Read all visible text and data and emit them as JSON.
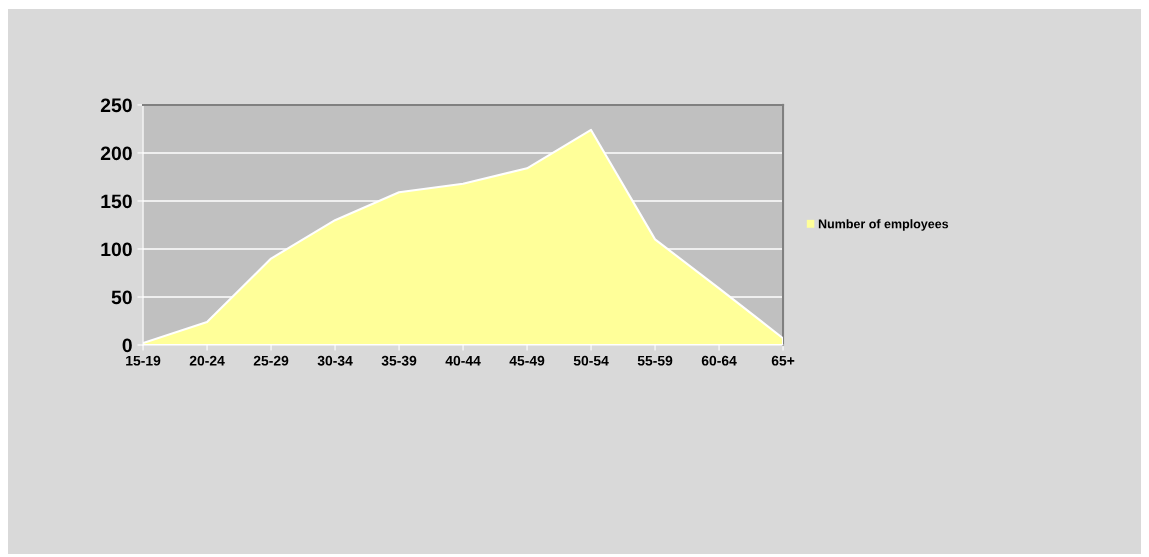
{
  "chart_data": {
    "type": "area",
    "categories": [
      "15-19",
      "20-24",
      "25-29",
      "30-34",
      "35-39",
      "40-44",
      "45-49",
      "50-54",
      "55-59",
      "60-64",
      "65+"
    ],
    "series": [
      {
        "name": "Number of employees",
        "color": "#ffff99",
        "values": [
          2,
          24,
          90,
          130,
          159,
          168,
          184,
          224,
          110,
          59,
          7
        ]
      }
    ],
    "ylim": [
      0,
      250
    ],
    "yticks": [
      0,
      50,
      100,
      150,
      200,
      250
    ],
    "grid": "y",
    "legend": "right"
  }
}
